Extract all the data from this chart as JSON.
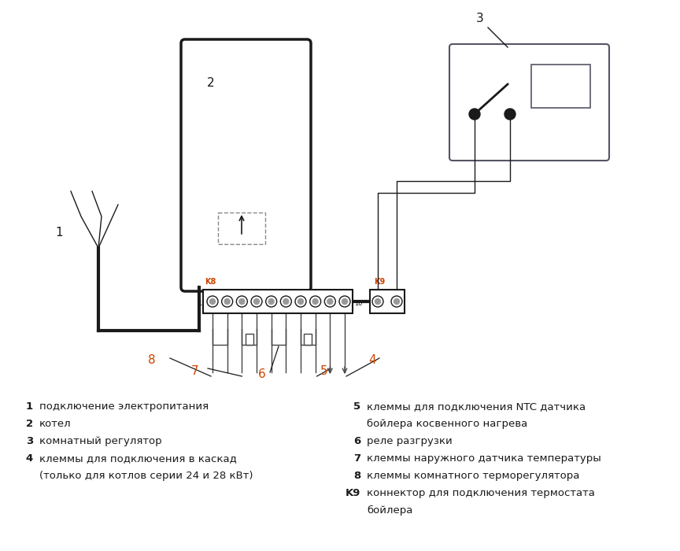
{
  "bg_color": "#ffffff",
  "line_color": "#1a1a1a",
  "orange_label_color": "#cc4400",
  "blue_label_color": "#2266aa",
  "legend_left": [
    [
      "1",
      "подключение электропитания"
    ],
    [
      "2",
      "котел"
    ],
    [
      "3",
      "комнатный регулятор"
    ],
    [
      "4",
      "клеммы для подключения в каскад"
    ],
    [
      "",
      "(только для котлов серии 24 и 28 кВт)"
    ]
  ],
  "legend_right": [
    [
      "5",
      "клеммы для подключения NTC датчика"
    ],
    [
      "",
      "бойлера косвенного нагрева"
    ],
    [
      "6",
      "реле разгрузки"
    ],
    [
      "7",
      "клеммы наружного датчика температуры"
    ],
    [
      "8",
      "клеммы комнатного терморегулятора"
    ],
    [
      "K9",
      "коннектор для подключения термостата"
    ],
    [
      "",
      "бойлера"
    ]
  ]
}
